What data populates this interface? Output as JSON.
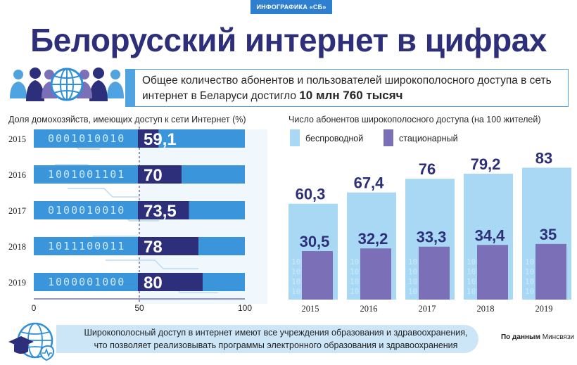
{
  "header": {
    "tag": "ИНФОГРАФИКА «СБ»",
    "title": "Белорусский интернет в цифрах"
  },
  "summary": {
    "text": "Общее количество абонентов и пользователей широкополосного доступа в сеть интернет в Беларуси достигло",
    "highlight": "10 млн 760 тысяч"
  },
  "footer": {
    "line1": "Широкополосный доступ в интернет имеют все учреждения образования и здравоохранения,",
    "line2": "что позволяет реализовывать программы электронного образования и здравоохранения",
    "source_prefix": "По данным",
    "source_name": "Минсвязи"
  },
  "colors": {
    "navy": "#2e2f7a",
    "wireless": "#a8d8f4",
    "fixed": "#7b6fb8",
    "band": "#2f8fd8"
  },
  "icons": [
    "people-globe-icon",
    "education-health-icon"
  ],
  "chart_data": [
    {
      "type": "bar",
      "orientation": "horizontal",
      "title": "Доля домохозяйств, имеющих доступ к сети Интернет (%)",
      "categories": [
        "2015",
        "2016",
        "2017",
        "2018",
        "2019"
      ],
      "values": [
        59.1,
        70,
        73.5,
        78,
        80
      ],
      "value_labels": [
        "59,1",
        "70",
        "73,5",
        "78",
        "80"
      ],
      "xlim": [
        0,
        100
      ],
      "xticks": [
        "0",
        "50",
        "100"
      ],
      "binary_strings": [
        "0001010010",
        "1001001101",
        "0100010010",
        "1011100011",
        "1000001000"
      ]
    },
    {
      "type": "bar",
      "title": "Число абонентов широкополосного доступа (на 100 жителей)",
      "categories": [
        "2015",
        "2016",
        "2017",
        "2018",
        "2019"
      ],
      "series": [
        {
          "name": "беспроводной",
          "values": [
            60.3,
            67.4,
            76,
            79.2,
            83
          ],
          "labels": [
            "60,3",
            "67,4",
            "76",
            "79,2",
            "83"
          ],
          "color": "#a8d8f4"
        },
        {
          "name": "стационарный",
          "values": [
            30.5,
            32.2,
            33.3,
            34.4,
            35
          ],
          "labels": [
            "30,5",
            "32,2",
            "33,3",
            "34,4",
            "35"
          ],
          "color": "#7b6fb8"
        }
      ],
      "ylim": [
        0,
        100
      ],
      "legend": "top-left"
    }
  ]
}
